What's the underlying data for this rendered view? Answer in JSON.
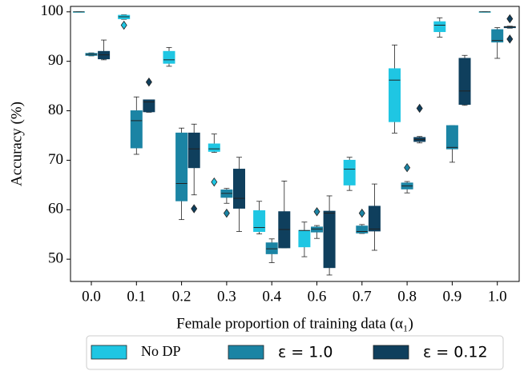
{
  "chart_data": {
    "type": "box",
    "xlabel": "Female proportion of training data (α₁)",
    "ylabel": "Accuracy (%)",
    "categories": [
      "0.0",
      "0.1",
      "0.2",
      "0.3",
      "0.4",
      "0.6",
      "0.7",
      "0.8",
      "0.9",
      "1.0"
    ],
    "ylim": [
      45.5,
      101.1
    ],
    "yticks": [
      50,
      60,
      70,
      80,
      90,
      100
    ],
    "legend": "bottom",
    "series": [
      {
        "name": "No DP",
        "color": "#1fc6e3",
        "values": [
          {
            "whislo": 100,
            "q1": 100,
            "med": 100,
            "q3": 100,
            "whishi": 100,
            "fliers": []
          },
          {
            "whislo": 98.5,
            "q1": 98.6,
            "med": 99,
            "q3": 99.3,
            "whishi": 99.4,
            "fliers": [
              97.3
            ]
          },
          {
            "whislo": 89,
            "q1": 89.6,
            "med": 90.3,
            "q3": 92,
            "whishi": 92.8,
            "fliers": []
          },
          {
            "whislo": 71.6,
            "q1": 71.8,
            "med": 72.3,
            "q3": 73.3,
            "whishi": 75.3,
            "fliers": [
              65.6
            ]
          },
          {
            "whislo": 55.1,
            "q1": 55.6,
            "med": 56.4,
            "q3": 59.8,
            "whishi": 61.7,
            "fliers": []
          },
          {
            "whislo": 50.5,
            "q1": 52.5,
            "med": 55.8,
            "q3": 55.8,
            "whishi": 57.5,
            "fliers": []
          },
          {
            "whislo": 63.9,
            "q1": 65,
            "med": 68.2,
            "q3": 70,
            "whishi": 70.6,
            "fliers": []
          },
          {
            "whislo": 75.5,
            "q1": 77.8,
            "med": 86.2,
            "q3": 88.5,
            "whishi": 93.3,
            "fliers": []
          },
          {
            "whislo": 94.9,
            "q1": 96,
            "med": 97.3,
            "q3": 98,
            "whishi": 98.8,
            "fliers": []
          },
          {
            "whislo": 100,
            "q1": 100,
            "med": 100,
            "q3": 100,
            "whishi": 100,
            "fliers": []
          }
        ]
      },
      {
        "name": "ε = 1.0",
        "color": "#1b84a4",
        "values": [
          {
            "whislo": 91.1,
            "q1": 91.2,
            "med": 91.4,
            "q3": 91.6,
            "whishi": 91.7,
            "fliers": []
          },
          {
            "whislo": 71.2,
            "q1": 72.5,
            "med": 78,
            "q3": 80,
            "whishi": 82.8,
            "fliers": []
          },
          {
            "whislo": 58,
            "q1": 61.8,
            "med": 65.3,
            "q3": 75.5,
            "whishi": 76.5,
            "fliers": []
          },
          {
            "whislo": 61.3,
            "q1": 62.5,
            "med": 63.3,
            "q3": 64,
            "whishi": 64.3,
            "fliers": [
              59.3
            ]
          },
          {
            "whislo": 49.3,
            "q1": 51.1,
            "med": 52.1,
            "q3": 53.3,
            "whishi": 54.1,
            "fliers": []
          },
          {
            "whislo": 54.2,
            "q1": 55.5,
            "med": 56.1,
            "q3": 56.5,
            "whishi": 56.8,
            "fliers": [
              59.6
            ]
          },
          {
            "whislo": 55.2,
            "q1": 55.3,
            "med": 55.6,
            "q3": 56.7,
            "whishi": 57,
            "fliers": [
              59.3
            ]
          },
          {
            "whislo": 63.4,
            "q1": 64.2,
            "med": 64.8,
            "q3": 65.4,
            "whishi": 65.7,
            "fliers": [
              68.5
            ]
          },
          {
            "whislo": 69.6,
            "q1": 72.3,
            "med": 72.6,
            "q3": 77,
            "whishi": 77,
            "fliers": []
          },
          {
            "whislo": 90.6,
            "q1": 93.9,
            "med": 94.2,
            "q3": 96.4,
            "whishi": 96.8,
            "fliers": []
          }
        ]
      },
      {
        "name": "ε = 0.12",
        "color": "#0f3f5d",
        "values": [
          {
            "whislo": 90.3,
            "q1": 90.5,
            "med": 91.3,
            "q3": 92,
            "whishi": 94.3,
            "fliers": []
          },
          {
            "whislo": 79.7,
            "q1": 79.8,
            "med": 81.8,
            "q3": 82.2,
            "whishi": 82.2,
            "fliers": [
              85.8
            ]
          },
          {
            "whislo": 63,
            "q1": 68.5,
            "med": 72.3,
            "q3": 75.5,
            "whishi": 77.3,
            "fliers": [
              60.2
            ]
          },
          {
            "whislo": 55.6,
            "q1": 60.3,
            "med": 62.3,
            "q3": 68.2,
            "whishi": 70.6,
            "fliers": []
          },
          {
            "whislo": 52.3,
            "q1": 52.3,
            "med": 56,
            "q3": 59.6,
            "whishi": 65.8,
            "fliers": []
          },
          {
            "whislo": 46.8,
            "q1": 48.3,
            "med": 59.3,
            "q3": 59.7,
            "whishi": 62.8,
            "fliers": []
          },
          {
            "whislo": 51.8,
            "q1": 55.7,
            "med": 56.1,
            "q3": 60.7,
            "whishi": 65.2,
            "fliers": []
          },
          {
            "whislo": 73.5,
            "q1": 73.8,
            "med": 74.2,
            "q3": 74.6,
            "whishi": 74.8,
            "fliers": [
              80.5
            ]
          },
          {
            "whislo": 81.1,
            "q1": 81.3,
            "med": 84,
            "q3": 90.6,
            "whishi": 91.2,
            "fliers": []
          },
          {
            "whislo": 96.7,
            "q1": 96.8,
            "med": 97,
            "q3": 97,
            "whishi": 97.1,
            "fliers": [
              98.6,
              94.5
            ]
          }
        ]
      }
    ]
  }
}
